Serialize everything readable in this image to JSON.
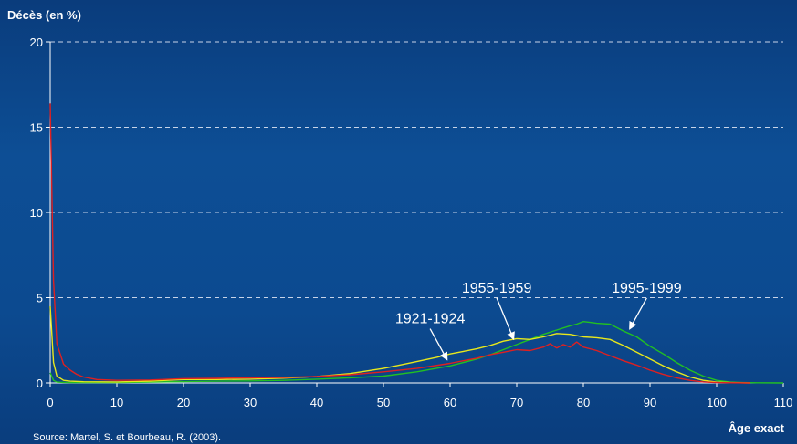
{
  "chart_data": {
    "type": "line",
    "ylabel": "Décès (en %)",
    "xlabel": "Âge exact",
    "source": "Source: Martel, S. et Bourbeau, R. (2003).",
    "xlim": [
      0,
      110
    ],
    "ylim": [
      0,
      20
    ],
    "xticks": [
      0,
      10,
      20,
      30,
      40,
      50,
      60,
      70,
      80,
      90,
      100,
      110
    ],
    "yticks": [
      0,
      5,
      10,
      15,
      20
    ],
    "grid": true,
    "series": [
      {
        "name": "1921-1924",
        "color": "#e02020",
        "x": [
          0,
          0.5,
          1,
          2,
          3,
          4,
          5,
          7,
          10,
          15,
          20,
          25,
          30,
          35,
          40,
          45,
          50,
          55,
          60,
          62,
          64,
          66,
          68,
          70,
          72,
          74,
          75,
          76,
          77,
          78,
          79,
          80,
          82,
          84,
          86,
          88,
          90,
          92,
          94,
          96,
          98,
          100,
          102,
          105
        ],
        "y": [
          16.4,
          6.0,
          2.3,
          1.1,
          0.75,
          0.5,
          0.35,
          0.2,
          0.15,
          0.17,
          0.25,
          0.27,
          0.3,
          0.32,
          0.38,
          0.48,
          0.65,
          0.85,
          1.15,
          1.3,
          1.45,
          1.65,
          1.8,
          1.95,
          1.9,
          2.1,
          2.3,
          2.05,
          2.25,
          2.1,
          2.4,
          2.1,
          1.9,
          1.6,
          1.3,
          1.05,
          0.75,
          0.5,
          0.3,
          0.15,
          0.06,
          0.02,
          0.01,
          0
        ]
      },
      {
        "name": "1955-1959",
        "color": "#e8e81c",
        "x": [
          0,
          0.5,
          1,
          2,
          3,
          5,
          10,
          15,
          20,
          25,
          30,
          35,
          40,
          45,
          50,
          55,
          58,
          60,
          62,
          64,
          66,
          68,
          70,
          72,
          74,
          76,
          78,
          80,
          82,
          84,
          86,
          88,
          90,
          92,
          94,
          96,
          98,
          100,
          102,
          105
        ],
        "y": [
          4.5,
          1.2,
          0.4,
          0.15,
          0.1,
          0.07,
          0.06,
          0.1,
          0.2,
          0.2,
          0.22,
          0.28,
          0.38,
          0.55,
          0.85,
          1.25,
          1.5,
          1.7,
          1.85,
          2.0,
          2.2,
          2.45,
          2.6,
          2.55,
          2.7,
          2.9,
          2.85,
          2.7,
          2.65,
          2.55,
          2.2,
          1.8,
          1.4,
          1.0,
          0.65,
          0.35,
          0.15,
          0.05,
          0.02,
          0
        ]
      },
      {
        "name": "1995-1999",
        "color": "#22c022",
        "x": [
          0,
          0.5,
          1,
          2,
          3,
          5,
          10,
          15,
          20,
          25,
          30,
          35,
          40,
          45,
          50,
          55,
          60,
          62,
          64,
          66,
          68,
          70,
          72,
          74,
          76,
          78,
          79,
          80,
          81,
          82,
          84,
          86,
          88,
          90,
          92,
          94,
          96,
          98,
          100,
          102,
          104,
          106,
          110
        ],
        "y": [
          0.6,
          0.15,
          0.05,
          0.03,
          0.02,
          0.02,
          0.02,
          0.05,
          0.08,
          0.1,
          0.12,
          0.15,
          0.22,
          0.3,
          0.4,
          0.65,
          1.0,
          1.2,
          1.4,
          1.65,
          1.95,
          2.25,
          2.55,
          2.85,
          3.1,
          3.35,
          3.45,
          3.6,
          3.55,
          3.5,
          3.45,
          3.05,
          2.7,
          2.15,
          1.7,
          1.2,
          0.75,
          0.4,
          0.15,
          0.05,
          0.02,
          0.01,
          0
        ]
      }
    ],
    "annotations": [
      {
        "text": "1921-1924",
        "label_x": 57,
        "label_y": 3.5,
        "arrow_to_x": 59.5,
        "arrow_to_y": 1.4
      },
      {
        "text": "1955-1959",
        "label_x": 67,
        "label_y": 5.3,
        "arrow_to_x": 69.5,
        "arrow_to_y": 2.6
      },
      {
        "text": "1995-1999",
        "label_x": 89.5,
        "label_y": 5.3,
        "arrow_to_x": 87,
        "arrow_to_y": 3.2
      }
    ]
  }
}
